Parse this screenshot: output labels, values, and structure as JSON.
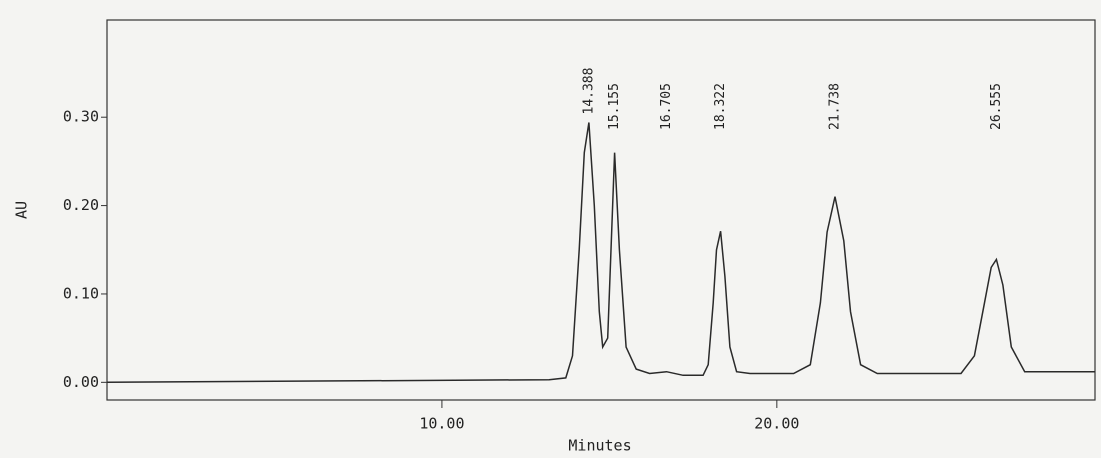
{
  "chart_data": {
    "type": "line",
    "x_label": "Minutes",
    "y_label": "AU",
    "x": [
      0,
      13.2,
      13.7,
      13.9,
      14.1,
      14.25,
      14.388,
      14.55,
      14.7,
      14.8,
      14.95,
      15.05,
      15.155,
      15.3,
      15.5,
      15.8,
      16.2,
      16.705,
      17.2,
      17.8,
      17.95,
      18.1,
      18.2,
      18.322,
      18.45,
      18.6,
      18.8,
      19.2,
      20.5,
      21.0,
      21.3,
      21.5,
      21.738,
      22.0,
      22.2,
      22.5,
      23.0,
      24.5,
      25.5,
      25.9,
      26.2,
      26.4,
      26.555,
      26.75,
      27.0,
      27.4,
      28.0,
      29.5
    ],
    "values": [
      0,
      0.003,
      0.005,
      0.03,
      0.15,
      0.26,
      0.294,
      0.2,
      0.08,
      0.04,
      0.05,
      0.15,
      0.26,
      0.15,
      0.04,
      0.015,
      0.01,
      0.012,
      0.008,
      0.008,
      0.02,
      0.09,
      0.15,
      0.171,
      0.12,
      0.04,
      0.012,
      0.01,
      0.01,
      0.02,
      0.09,
      0.17,
      0.21,
      0.16,
      0.08,
      0.02,
      0.01,
      0.01,
      0.01,
      0.03,
      0.09,
      0.13,
      0.139,
      0.11,
      0.04,
      0.012,
      0.012,
      0.012
    ],
    "color": "#2a2a2a",
    "peaks": {
      "x": [
        14.388,
        15.155,
        16.705,
        18.322,
        21.738,
        26.555
      ],
      "y": [
        0.294,
        0.26,
        0.012,
        0.171,
        0.21,
        0.139
      ]
    },
    "xlim": [
      0,
      29.5
    ],
    "ylim": [
      -0.02,
      0.41
    ],
    "xticks": [
      {
        "value": 10,
        "label": "10.00"
      },
      {
        "value": 20,
        "label": "20.00"
      }
    ],
    "yticks": [
      {
        "value": 0,
        "label": "0.00"
      },
      {
        "value": 0.1,
        "label": "0.10"
      },
      {
        "value": 0.2,
        "label": "0.20"
      },
      {
        "value": 0.3,
        "label": "0.30"
      }
    ]
  }
}
